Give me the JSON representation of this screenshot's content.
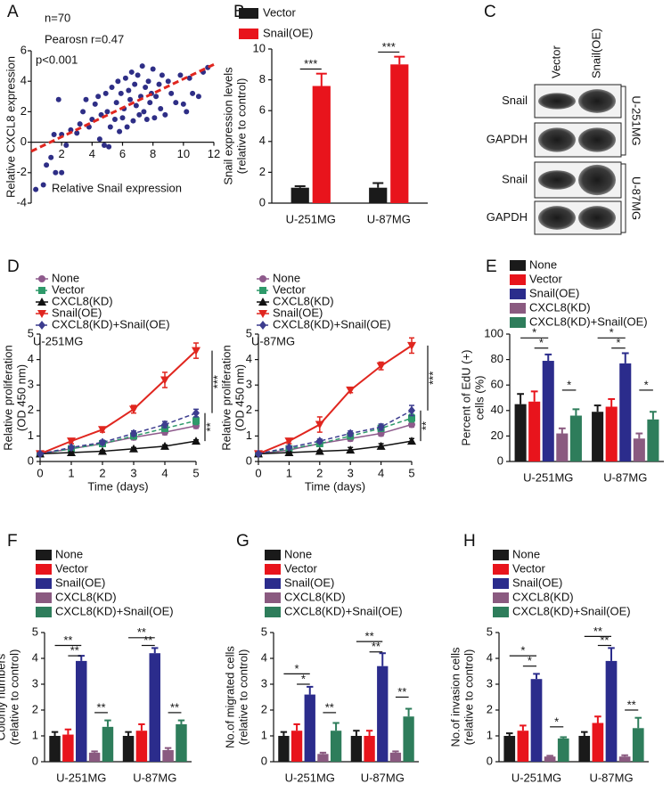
{
  "chart_data": [
    {
      "type": "scatter",
      "panel": "A",
      "annotations": [
        "n=70",
        "Pearosn r=0.47",
        "p<0.001"
      ],
      "ylabel": [
        "Relative CXCL8 expression"
      ],
      "xlabel": "Relative Snail expression",
      "color": "#2e2e86",
      "x": [
        0.3,
        0.8,
        1.0,
        1.3,
        1.6,
        2.0,
        1.5,
        1.8,
        2.0,
        2.3,
        2.6,
        3.0,
        3.2,
        3.4,
        3.6,
        3.8,
        4.0,
        4.2,
        4.4,
        4.5,
        4.6,
        4.8,
        4.9,
        5.0,
        5.1,
        5.2,
        5.3,
        5.5,
        5.6,
        5.7,
        5.8,
        5.9,
        6.0,
        6.1,
        6.2,
        6.3,
        6.4,
        6.5,
        6.6,
        6.7,
        6.8,
        6.9,
        7.0,
        7.1,
        7.2,
        7.3,
        7.4,
        7.5,
        7.6,
        7.7,
        7.8,
        7.9,
        8.0,
        8.1,
        8.2,
        8.4,
        8.5,
        8.6,
        8.8,
        9.0,
        9.2,
        9.5,
        9.8,
        10.0,
        10.2,
        10.4,
        10.6,
        11.0,
        11.3,
        11.6
      ],
      "values": [
        -3.1,
        -2.8,
        -1.5,
        -1.0,
        -2.0,
        -2.0,
        0.5,
        2.8,
        0.5,
        -0.2,
        0.8,
        0.6,
        1.2,
        2.0,
        2.8,
        1.0,
        1.5,
        2.5,
        3.0,
        0.2,
        1.8,
        -0.2,
        3.2,
        2.0,
        -0.3,
        1.0,
        3.6,
        1.5,
        2.6,
        4.0,
        0.7,
        3.2,
        1.6,
        2.2,
        4.2,
        1.0,
        3.4,
        2.8,
        4.6,
        1.4,
        3.8,
        2.4,
        4.4,
        1.8,
        3.0,
        5.0,
        2.0,
        3.6,
        1.5,
        4.0,
        2.6,
        3.2,
        4.8,
        1.6,
        3.0,
        3.8,
        2.2,
        4.4,
        1.8,
        4.0,
        3.2,
        2.6,
        4.4,
        2.5,
        2.0,
        4.2,
        3.2,
        3.0,
        4.6,
        4.9
      ],
      "fit": {
        "color": "#e0261f",
        "x": [
          0,
          12
        ],
        "values": [
          -0.6,
          5.1
        ]
      },
      "xlim": [
        0,
        12
      ],
      "xticks": [
        2,
        4,
        6,
        8,
        10,
        12
      ],
      "ylim": [
        -4,
        6
      ],
      "yticks": [
        -4,
        -2,
        0,
        2,
        4,
        6
      ]
    },
    {
      "type": "bar",
      "panel": "B",
      "ylabel": [
        "Snail expression levels",
        "(relative to control)"
      ],
      "categories": [
        "U-251MG",
        "U-87MG"
      ],
      "series": [
        {
          "name": "Vector",
          "color": "#1a1a1a",
          "values": [
            1.0,
            1.0
          ],
          "errors": [
            0.1,
            0.3
          ]
        },
        {
          "name": "Snail(OE)",
          "color": "#e8141c",
          "values": [
            7.6,
            9.0
          ],
          "errors": [
            0.8,
            0.5
          ]
        }
      ],
      "significance": [
        "***",
        "***"
      ],
      "ylim": [
        0,
        10
      ],
      "yticks": [
        0,
        2,
        4,
        6,
        8,
        10
      ]
    },
    {
      "type": "blot",
      "panel": "C",
      "columns": [
        "Vector",
        "Snail(OE)"
      ],
      "rows": [
        "Snail",
        "GAPDH",
        "Snail",
        "GAPDH"
      ],
      "groups": [
        "U-251MG",
        "U-87MG"
      ]
    },
    {
      "type": "line",
      "panel": "D",
      "cell": "U-251MG",
      "xlabel": "Time (days)",
      "ylabel": [
        "Relative proliferation",
        "(OD 450 nm)"
      ],
      "x": [
        0,
        1,
        2,
        3,
        4,
        5
      ],
      "series": [
        {
          "name": "None",
          "color": "#8e5a8c",
          "marker": "circle",
          "dashed": false,
          "values": [
            0.3,
            0.5,
            0.7,
            0.95,
            1.15,
            1.4
          ],
          "errors": [
            0.05,
            0.05,
            0.08,
            0.1,
            0.1,
            0.1
          ]
        },
        {
          "name": "Vector",
          "color": "#2e9a6a",
          "marker": "square",
          "dashed": true,
          "values": [
            0.3,
            0.5,
            0.7,
            1.0,
            1.3,
            1.6
          ],
          "errors": [
            0.05,
            0.05,
            0.08,
            0.1,
            0.12,
            0.15
          ]
        },
        {
          "name": "CXCL8(KD)",
          "color": "#111111",
          "marker": "triangle",
          "dashed": false,
          "values": [
            0.3,
            0.35,
            0.4,
            0.5,
            0.6,
            0.8
          ],
          "errors": [
            0.03,
            0.03,
            0.04,
            0.05,
            0.05,
            0.05
          ]
        },
        {
          "name": "Snail(OE)",
          "color": "#e0261f",
          "marker": "triangle-down",
          "dashed": false,
          "values": [
            0.3,
            0.8,
            1.25,
            2.05,
            3.2,
            4.35
          ],
          "errors": [
            0.05,
            0.1,
            0.1,
            0.15,
            0.3,
            0.3
          ]
        },
        {
          "name": "CXCL8(KD)+Snail(OE)",
          "color": "#3d3d8f",
          "marker": "diamond",
          "dashed": true,
          "values": [
            0.3,
            0.55,
            0.75,
            1.1,
            1.45,
            1.9
          ],
          "errors": [
            0.05,
            0.05,
            0.08,
            0.1,
            0.12,
            0.15
          ]
        }
      ],
      "significance": [
        "***",
        "**"
      ],
      "xlim": [
        0,
        5
      ],
      "xticks": [
        0,
        1,
        2,
        3,
        4,
        5
      ],
      "ylim": [
        0,
        5
      ],
      "yticks": [
        0,
        1,
        2,
        3,
        4,
        5
      ]
    },
    {
      "type": "line",
      "cell": "U-87MG",
      "xlabel": "Time (days)",
      "ylabel": [
        "Relative proliferation",
        "(OD 450 nm)"
      ],
      "x": [
        0,
        1,
        2,
        3,
        4,
        5
      ],
      "series": [
        {
          "name": "None",
          "color": "#8e5a8c",
          "marker": "circle",
          "dashed": false,
          "values": [
            0.3,
            0.45,
            0.7,
            0.9,
            1.1,
            1.45
          ],
          "errors": [
            0.05,
            0.05,
            0.08,
            0.1,
            0.1,
            0.1
          ]
        },
        {
          "name": "Vector",
          "color": "#2e9a6a",
          "marker": "square",
          "dashed": true,
          "values": [
            0.3,
            0.5,
            0.7,
            1.0,
            1.3,
            1.7
          ],
          "errors": [
            0.05,
            0.05,
            0.08,
            0.1,
            0.12,
            0.15
          ]
        },
        {
          "name": "CXCL8(KD)",
          "color": "#111111",
          "marker": "triangle",
          "dashed": false,
          "values": [
            0.3,
            0.35,
            0.4,
            0.45,
            0.6,
            0.8
          ],
          "errors": [
            0.03,
            0.03,
            0.04,
            0.1,
            0.1,
            0.1
          ]
        },
        {
          "name": "Snail(OE)",
          "color": "#e0261f",
          "marker": "triangle-down",
          "dashed": false,
          "values": [
            0.3,
            0.8,
            1.45,
            2.8,
            3.75,
            4.55
          ],
          "errors": [
            0.05,
            0.1,
            0.3,
            0.1,
            0.15,
            0.3
          ]
        },
        {
          "name": "CXCL8(KD)+Snail(OE)",
          "color": "#3d3d8f",
          "marker": "diamond",
          "dashed": true,
          "values": [
            0.3,
            0.55,
            0.8,
            1.1,
            1.35,
            2.0
          ],
          "errors": [
            0.05,
            0.05,
            0.08,
            0.1,
            0.12,
            0.2
          ]
        }
      ],
      "significance": [
        "***",
        "**"
      ],
      "xlim": [
        0,
        5
      ],
      "xticks": [
        0,
        1,
        2,
        3,
        4,
        5
      ],
      "ylim": [
        0,
        5
      ],
      "yticks": [
        0,
        1,
        2,
        3,
        4,
        5
      ]
    },
    {
      "type": "bar",
      "panel": "E",
      "ylabel": [
        "Percent of EdU (+)",
        "cells (%)"
      ],
      "categories": [
        "U-251MG",
        "U-87MG"
      ],
      "series": [
        {
          "name": "None",
          "color": "#1a1a1a",
          "values": [
            45,
            39
          ],
          "errors": [
            8,
            5
          ]
        },
        {
          "name": "Vector",
          "color": "#e8141c",
          "values": [
            47,
            43
          ],
          "errors": [
            8,
            6
          ]
        },
        {
          "name": "Snail(OE)",
          "color": "#2b2c8c",
          "values": [
            79,
            77
          ],
          "errors": [
            5,
            8
          ]
        },
        {
          "name": "CXCL8(KD)",
          "color": "#8a5a80",
          "values": [
            22,
            18
          ],
          "errors": [
            4,
            4
          ]
        },
        {
          "name": "CXCL8(KD)+Snail(OE)",
          "color": "#2e7d5b",
          "values": [
            36,
            33
          ],
          "errors": [
            5,
            6
          ]
        }
      ],
      "significance": [
        "*",
        "*",
        "*",
        "*",
        "*",
        "*"
      ],
      "ylim": [
        0,
        100
      ],
      "yticks": [
        0,
        20,
        40,
        60,
        80,
        100
      ]
    },
    {
      "type": "bar",
      "panel": "F",
      "ylabel": [
        "Colonly  numbers",
        "(relative to control)"
      ],
      "categories": [
        "U-251MG",
        "U-87MG"
      ],
      "series": [
        {
          "name": "None",
          "color": "#1a1a1a",
          "values": [
            1.0,
            1.0
          ],
          "errors": [
            0.15,
            0.15
          ]
        },
        {
          "name": "Vector",
          "color": "#e8141c",
          "values": [
            1.05,
            1.2
          ],
          "errors": [
            0.2,
            0.25
          ]
        },
        {
          "name": "Snail(OE)",
          "color": "#2b2c8c",
          "values": [
            3.9,
            4.2
          ],
          "errors": [
            0.2,
            0.2
          ]
        },
        {
          "name": "CXCL8(KD)",
          "color": "#8a5a80",
          "values": [
            0.35,
            0.45
          ],
          "errors": [
            0.05,
            0.08
          ]
        },
        {
          "name": "CXCL8(KD)+Snail(OE)",
          "color": "#2e7d5b",
          "values": [
            1.35,
            1.45
          ],
          "errors": [
            0.25,
            0.15
          ]
        }
      ],
      "significance": [
        "**",
        "**",
        "**",
        "**",
        "**",
        "**"
      ],
      "ylim": [
        0,
        5
      ],
      "yticks": [
        0,
        1,
        2,
        3,
        4,
        5
      ]
    },
    {
      "type": "bar",
      "panel": "G",
      "ylabel": [
        "No.of migrated cells",
        "(relative to control)"
      ],
      "categories": [
        "U-251MG",
        "U-87MG"
      ],
      "series": [
        {
          "name": "None",
          "color": "#1a1a1a",
          "values": [
            1.0,
            1.0
          ],
          "errors": [
            0.15,
            0.2
          ]
        },
        {
          "name": "Vector",
          "color": "#e8141c",
          "values": [
            1.2,
            1.0
          ],
          "errors": [
            0.25,
            0.2
          ]
        },
        {
          "name": "Snail(OE)",
          "color": "#2b2c8c",
          "values": [
            2.6,
            3.7
          ],
          "errors": [
            0.3,
            0.5
          ]
        },
        {
          "name": "CXCL8(KD)",
          "color": "#8a5a80",
          "values": [
            0.3,
            0.35
          ],
          "errors": [
            0.05,
            0.05
          ]
        },
        {
          "name": "CXCL8(KD)+Snail(OE)",
          "color": "#2e7d5b",
          "values": [
            1.2,
            1.75
          ],
          "errors": [
            0.3,
            0.3
          ]
        }
      ],
      "significance": [
        "*",
        "*",
        "**",
        "**",
        "**",
        "**"
      ],
      "ylim": [
        0,
        5
      ],
      "yticks": [
        0,
        1,
        2,
        3,
        4,
        5
      ]
    },
    {
      "type": "bar",
      "panel": "H",
      "ylabel": [
        "No.of invasion cells",
        "(relative to control)"
      ],
      "categories": [
        "U-251MG",
        "U-87MG"
      ],
      "series": [
        {
          "name": "None",
          "color": "#1a1a1a",
          "values": [
            1.0,
            1.0
          ],
          "errors": [
            0.1,
            0.15
          ]
        },
        {
          "name": "Vector",
          "color": "#e8141c",
          "values": [
            1.2,
            1.5
          ],
          "errors": [
            0.2,
            0.25
          ]
        },
        {
          "name": "Snail(OE)",
          "color": "#2b2c8c",
          "values": [
            3.2,
            3.9
          ],
          "errors": [
            0.2,
            0.5
          ]
        },
        {
          "name": "CXCL8(KD)",
          "color": "#8a5a80",
          "values": [
            0.2,
            0.2
          ],
          "errors": [
            0.03,
            0.05
          ]
        },
        {
          "name": "CXCL8(KD)+Snail(OE)",
          "color": "#2e7d5b",
          "values": [
            0.9,
            1.3
          ],
          "errors": [
            0.05,
            0.4
          ]
        }
      ],
      "significance": [
        "*",
        "*",
        "*",
        "**",
        "**",
        "**"
      ],
      "ylim": [
        0,
        5
      ],
      "yticks": [
        0,
        1,
        2,
        3,
        4,
        5
      ]
    }
  ]
}
